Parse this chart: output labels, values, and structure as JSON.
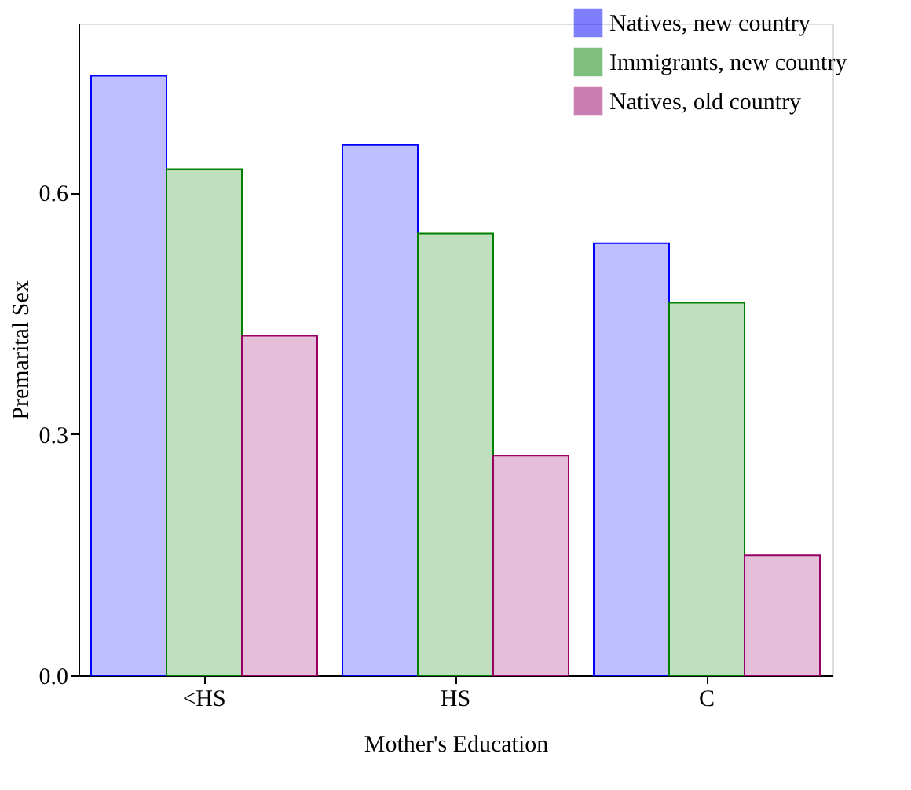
{
  "chart_data": {
    "type": "bar",
    "xlabel": "Mother's Education",
    "ylabel": "Premarital Sex",
    "categories": [
      "<HS",
      "HS",
      "C"
    ],
    "series": [
      {
        "name": "Natives, new country",
        "color": "#0000ff",
        "values": [
          0.745,
          0.659,
          0.537
        ]
      },
      {
        "name": "Immigrants, new country",
        "color": "#008000",
        "values": [
          0.629,
          0.549,
          0.463
        ]
      },
      {
        "name": "Natives, old country",
        "color": "#990066",
        "values": [
          0.422,
          0.273,
          0.149
        ]
      }
    ],
    "ylim": [
      0,
      0.81
    ],
    "yticks": [
      {
        "value": 0.0,
        "label": "0.0"
      },
      {
        "value": 0.3,
        "label": "0.3"
      },
      {
        "value": 0.6,
        "label": "0.6"
      }
    ],
    "grid": false,
    "legend": "top right"
  }
}
